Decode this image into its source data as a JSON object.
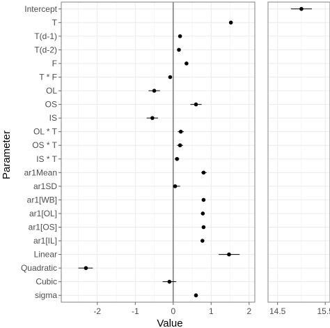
{
  "chart_data": {
    "type": "scatter",
    "subtype": "coefficient-plot",
    "title": "",
    "xlabel": "Value",
    "ylabel": "Parameter",
    "grid": true,
    "legend": "none",
    "parameters": [
      "Intercept",
      "T",
      "T(d-1)",
      "T(d-2)",
      "F",
      "T * F",
      "OL",
      "OS",
      "IS",
      "OL * T",
      "OS * T",
      "IS * T",
      "ar1Mean",
      "ar1SD",
      "ar1[WB]",
      "ar1[OL]",
      "ar1[OS]",
      "ar1[IL]",
      "Linear",
      "Quadratic",
      "Cubic",
      "sigma"
    ],
    "panels": [
      {
        "name": "main",
        "xlim": [
          -2.95,
          2.15
        ],
        "xticks": [
          -2,
          -1,
          0,
          1,
          2
        ],
        "xtick_labels": [
          "-2",
          "-1",
          "0",
          "1",
          "2"
        ],
        "reference_line": 0,
        "points": [
          {
            "parameter": "T",
            "estimate": 1.52,
            "lower": 1.5,
            "upper": 1.54
          },
          {
            "parameter": "T(d-1)",
            "estimate": 0.18,
            "lower": 0.16,
            "upper": 0.2
          },
          {
            "parameter": "T(d-2)",
            "estimate": 0.15,
            "lower": 0.13,
            "upper": 0.17
          },
          {
            "parameter": "F",
            "estimate": 0.35,
            "lower": 0.33,
            "upper": 0.37
          },
          {
            "parameter": "T * F",
            "estimate": -0.08,
            "lower": -0.1,
            "upper": -0.06
          },
          {
            "parameter": "OL",
            "estimate": -0.5,
            "lower": -0.65,
            "upper": -0.35
          },
          {
            "parameter": "OS",
            "estimate": 0.6,
            "lower": 0.45,
            "upper": 0.75
          },
          {
            "parameter": "IS",
            "estimate": -0.55,
            "lower": -0.7,
            "upper": -0.4
          },
          {
            "parameter": "OL * T",
            "estimate": 0.2,
            "lower": 0.12,
            "upper": 0.28
          },
          {
            "parameter": "OS * T",
            "estimate": 0.18,
            "lower": 0.1,
            "upper": 0.26
          },
          {
            "parameter": "IS * T",
            "estimate": 0.1,
            "lower": 0.04,
            "upper": 0.16
          },
          {
            "parameter": "ar1Mean",
            "estimate": 0.8,
            "lower": 0.74,
            "upper": 0.88
          },
          {
            "parameter": "ar1SD",
            "estimate": 0.05,
            "lower": 0.0,
            "upper": 0.18
          },
          {
            "parameter": "ar1[WB]",
            "estimate": 0.8,
            "lower": 0.78,
            "upper": 0.82
          },
          {
            "parameter": "ar1[OL]",
            "estimate": 0.78,
            "lower": 0.76,
            "upper": 0.8
          },
          {
            "parameter": "ar1[OS]",
            "estimate": 0.8,
            "lower": 0.78,
            "upper": 0.82
          },
          {
            "parameter": "ar1[IL]",
            "estimate": 0.77,
            "lower": 0.75,
            "upper": 0.79
          },
          {
            "parameter": "Linear",
            "estimate": 1.47,
            "lower": 1.2,
            "upper": 1.75
          },
          {
            "parameter": "Quadratic",
            "estimate": -2.3,
            "lower": -2.5,
            "upper": -2.12
          },
          {
            "parameter": "Cubic",
            "estimate": -0.1,
            "lower": -0.28,
            "upper": 0.08
          },
          {
            "parameter": "sigma",
            "estimate": 0.6,
            "lower": 0.58,
            "upper": 0.62
          }
        ]
      },
      {
        "name": "intercept",
        "xlim": [
          14.3,
          15.6
        ],
        "xticks": [
          14.5,
          15.5
        ],
        "xtick_labels": [
          "14.5",
          "15.5"
        ],
        "points": [
          {
            "parameter": "Intercept",
            "estimate": 15.0,
            "lower": 14.78,
            "upper": 15.22
          }
        ]
      }
    ]
  },
  "colors": {
    "panel_background": "#ffffff",
    "grid_major": "#ebebeb",
    "grid_minor": "#f5f5f5",
    "panel_border": "#808080",
    "point": "#000000",
    "reference_line": "#555555",
    "tick_label": "#4d4d4d"
  }
}
